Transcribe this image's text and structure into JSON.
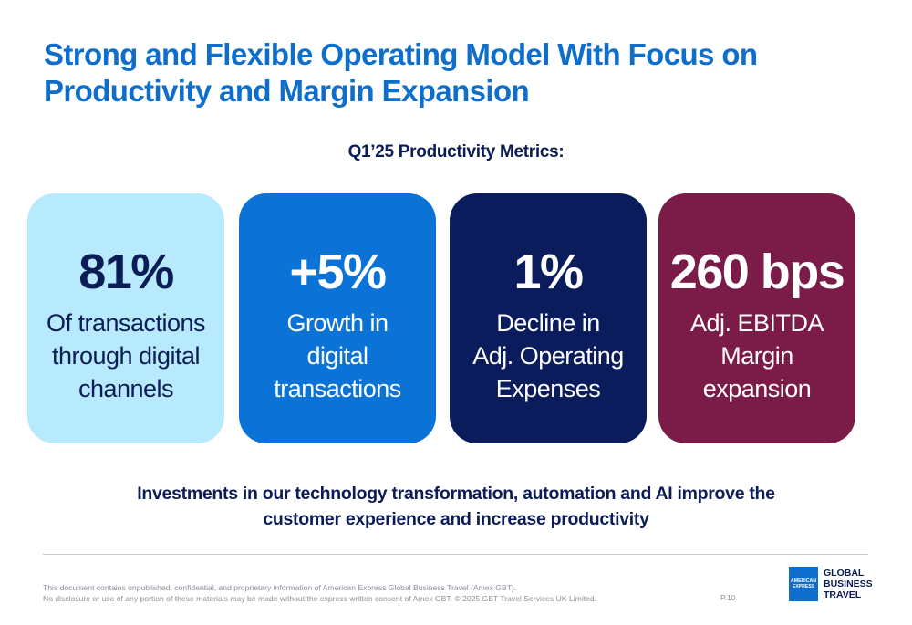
{
  "slide": {
    "title_line1": "Strong and Flexible Operating Model With Focus on",
    "title_line2": "Productivity and Margin Expansion",
    "subtitle": "Q1’25 Productivity Metrics:"
  },
  "metrics": [
    {
      "value": "81%",
      "description_lines": [
        "Of transactions",
        "through digital",
        "channels"
      ],
      "background": "#b7eafc",
      "text_color": "#0b1c56"
    },
    {
      "value": "+5%",
      "description_lines": [
        "Growth in",
        "digital",
        "transactions"
      ],
      "background": "#0b73d6",
      "text_color": "#ffffff"
    },
    {
      "value": "1%",
      "description_lines": [
        "Decline in",
        "Adj. Operating",
        "Expenses"
      ],
      "background": "#0b1c5c",
      "text_color": "#ffffff"
    },
    {
      "value": "260 bps",
      "description_lines": [
        "Adj. EBITDA",
        "Margin",
        "expansion"
      ],
      "background": "#7b1b47",
      "text_color": "#ffffff"
    }
  ],
  "statement": {
    "line1": "Investments in our technology transformation, automation and AI improve the",
    "line2": "customer experience and increase productivity"
  },
  "footer": {
    "disclaimer_line1": "This document contains unpublished, confidential, and proprietary information of American Express Global Business Travel (Amex GBT).",
    "disclaimer_line2": "No disclosure or use of any portion of these materials may be made without the express written consent of Amex GBT. © 2025 GBT Travel Services UK Limited.",
    "page_number": "P.10"
  },
  "logo": {
    "box_line1": "AMERICAN",
    "box_line2": "EXPRESS",
    "word1": "GLOBAL",
    "word2": "BUSINESS",
    "word3": "TRAVEL"
  },
  "colors": {
    "title_blue": "#0e6ecb",
    "navy": "#0b1c56",
    "footer_gray": "#8a8f99"
  }
}
